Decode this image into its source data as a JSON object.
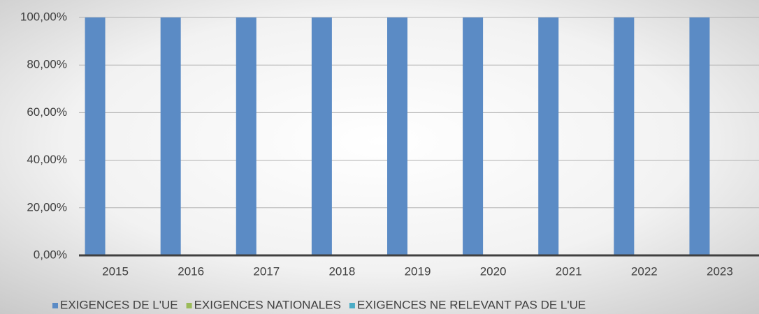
{
  "chart_data": {
    "type": "bar",
    "categories": [
      "2015",
      "2016",
      "2017",
      "2018",
      "2019",
      "2020",
      "2021",
      "2022",
      "2023"
    ],
    "series": [
      {
        "name": "EXIGENCES DE L'UE",
        "color": "#5b8bc5",
        "values": [
          100,
          100,
          100,
          100,
          100,
          100,
          100,
          100,
          100
        ]
      },
      {
        "name": "EXIGENCES NATIONALES",
        "color": "#9bbb59",
        "values": [
          0,
          0,
          0,
          0,
          0,
          0,
          0,
          0,
          0
        ]
      },
      {
        "name": "EXIGENCES NE RELEVANT PAS DE L'UE",
        "color": "#4bacc6",
        "values": [
          0,
          0,
          0,
          0,
          0,
          0,
          0,
          0,
          0
        ]
      }
    ],
    "ylim": [
      0,
      100
    ],
    "yticks": [
      {
        "value": 0,
        "label": "0,00%"
      },
      {
        "value": 20,
        "label": "20,00%"
      },
      {
        "value": 40,
        "label": "40,00%"
      },
      {
        "value": 60,
        "label": "60,00%"
      },
      {
        "value": 80,
        "label": "80,00%"
      },
      {
        "value": 100,
        "label": "100,00%"
      }
    ],
    "grid": true,
    "legend": "bottom"
  }
}
